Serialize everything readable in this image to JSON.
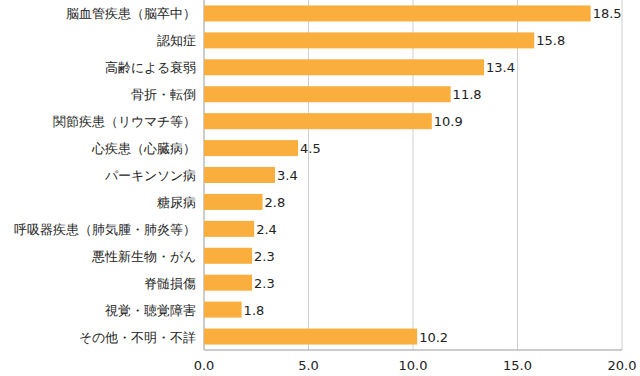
{
  "chart_data": {
    "type": "bar",
    "orientation": "horizontal",
    "categories": [
      "脳血管疾患（脳卒中）",
      "認知症",
      "高齢による衰弱",
      "骨折・転倒",
      "関節疾患（リウマチ等）",
      "心疾患（心臓病）",
      "パーキンソン病",
      "糖尿病",
      "呼吸器疾患（肺気腫・肺炎等）",
      "悪性新生物・がん",
      "脊髄損傷",
      "視覚・聴覚障害",
      "その他・不明・不詳"
    ],
    "values": [
      18.5,
      15.8,
      13.4,
      11.8,
      10.9,
      4.5,
      3.4,
      2.8,
      2.4,
      2.3,
      2.3,
      1.8,
      10.2
    ],
    "color": "#f9ae3d",
    "xlim": [
      0,
      20
    ],
    "xticks": [
      {
        "value": 0,
        "label": "0.0"
      },
      {
        "value": 5,
        "label": "5.0"
      },
      {
        "value": 10,
        "label": "10.0"
      },
      {
        "value": 15,
        "label": "15.0"
      },
      {
        "value": 20,
        "label": "20.0"
      }
    ],
    "grid": true,
    "data_labels": true
  }
}
